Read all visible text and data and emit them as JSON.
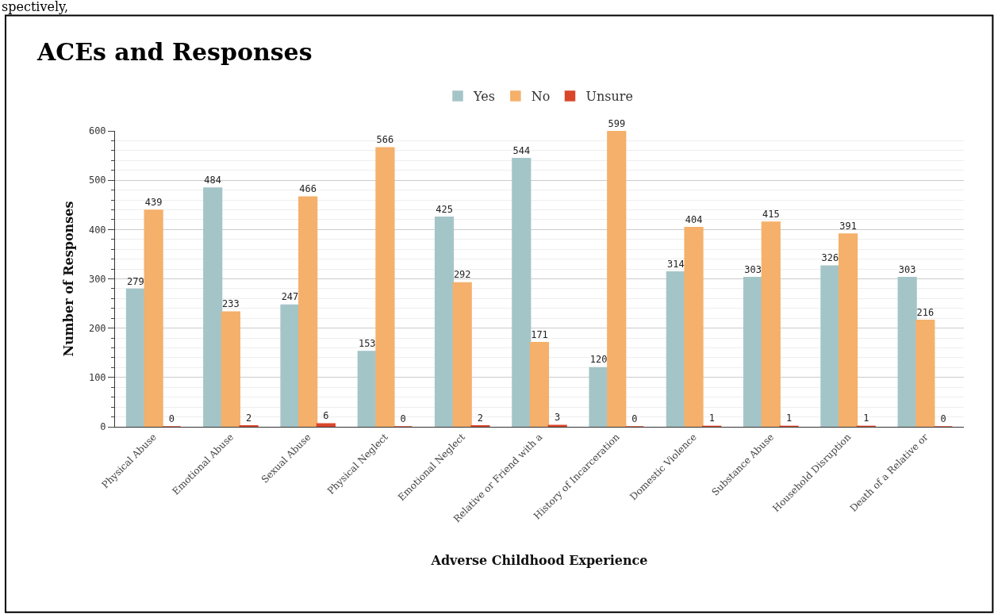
{
  "chart_data": {
    "type": "bar",
    "title": "ACEs and Responses",
    "xlabel": "Adverse Childhood Experience",
    "ylabel": "Number of Responses",
    "annotations": [
      "spectively,"
    ],
    "categories": [
      "Physical Abuse",
      "Emotional Abuse",
      "Sexual Abuse",
      "Physical Neglect",
      "Emotional Neglect",
      "Relative or Friend with a",
      "History of Incarceration",
      "Domestic Violence",
      "Substance Abuse",
      "Household Disruption",
      "Death of a Relative or"
    ],
    "series": [
      {
        "name": "Yes",
        "color": "#a4c5c8",
        "values": [
          279,
          484,
          247,
          153,
          425,
          544,
          120,
          314,
          303,
          326,
          303
        ]
      },
      {
        "name": "No",
        "color": "#f5b06b",
        "values": [
          439,
          233,
          466,
          566,
          292,
          171,
          599,
          404,
          415,
          391,
          216
        ]
      },
      {
        "name": "Unsure",
        "color": "#d9472b",
        "values": [
          0,
          2,
          6,
          0,
          2,
          3,
          0,
          1,
          1,
          1,
          0
        ]
      }
    ],
    "ylim": [
      0,
      600
    ],
    "yticks": [
      0,
      100,
      200,
      300,
      400,
      500,
      600
    ],
    "grid": "y",
    "legend": "top",
    "data_labels": true
  }
}
